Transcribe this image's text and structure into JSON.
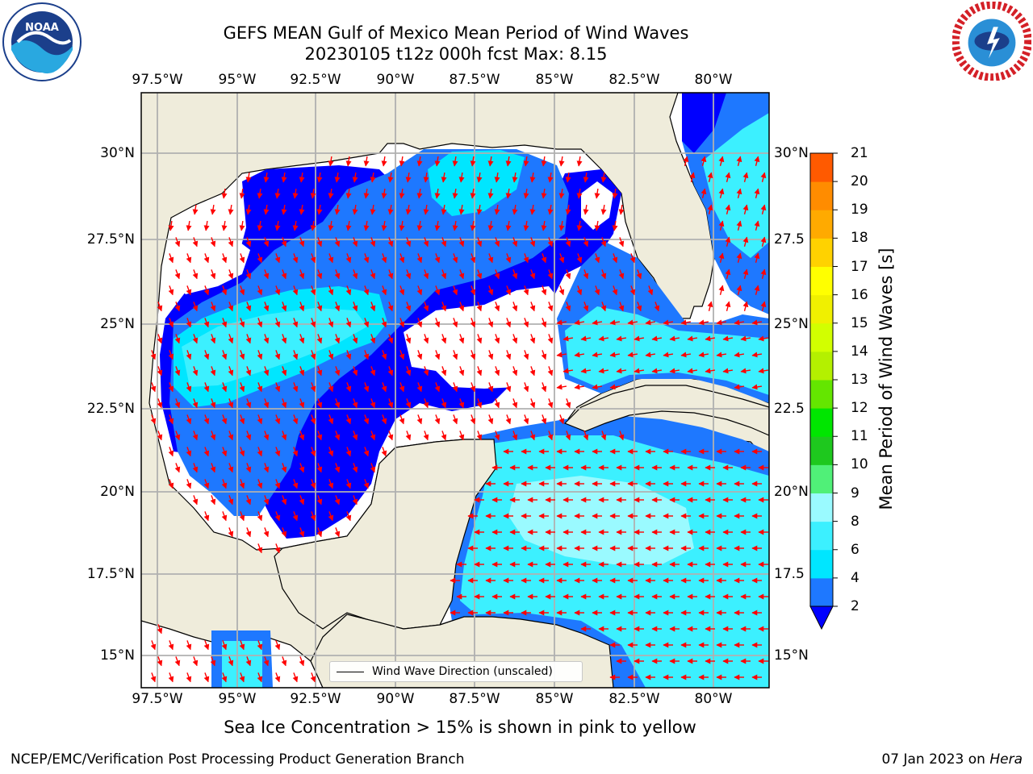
{
  "title": {
    "line1": "GEFS MEAN Gulf of Mexico Mean Period of Wind Waves",
    "line2": "20230105 t12z 000h fcst   Max: 8.15"
  },
  "logos": {
    "left": {
      "name": "NOAA",
      "ring_text": "NATIONAL OCEANIC AND ATMOSPHERIC ADMINISTRATION · U.S. DEPARTMENT OF COMMERCE ·"
    },
    "right": {
      "name": "National Weather Service",
      "ring_text": "NATIONAL WEATHER SERVICE"
    }
  },
  "map": {
    "lon_labels": [
      "97.5°W",
      "95°W",
      "92.5°W",
      "90°W",
      "87.5°W",
      "85°W",
      "82.5°W",
      "80°W"
    ],
    "lat_labels_left": [
      "30°N",
      "27.5°N",
      "25°N",
      "22.5°N",
      "20°N",
      "17.5°N",
      "15°N"
    ],
    "lat_labels_right": [
      "30°N",
      "27.5",
      "25°N",
      "22.5",
      "20°N",
      "17.5",
      "15°N"
    ],
    "land_color": "#efecdb",
    "grid": true,
    "legend_label": "Wind Wave Direction (unscaled)",
    "arrow_color": "#ff0000"
  },
  "colorbar": {
    "label": "Mean Period of Wind Waves [s]",
    "ticks": [
      "2",
      "4",
      "6",
      "8",
      "9",
      "10",
      "11",
      "12",
      "13",
      "14",
      "15",
      "16",
      "17",
      "18",
      "19",
      "20",
      "21"
    ],
    "colors": [
      "#1e78ff",
      "#00e6ff",
      "#3cf0ff",
      "#9afaff",
      "#50f078",
      "#1ec81e",
      "#00e600",
      "#64e600",
      "#b4f000",
      "#d2ff00",
      "#f0f000",
      "#ffff00",
      "#ffd200",
      "#ffaa00",
      "#ff8c00",
      "#ff5a00",
      "#ff2800",
      "#ff0000"
    ],
    "under_color": "#0000ff"
  },
  "caption": "Sea Ice Concentration > 15% is shown in pink to yellow",
  "footer": {
    "left": "NCEP/EMC/Verification Post Processing Product Generation Branch",
    "right_date": "07 Jan 2023 on ",
    "right_host": "Hera"
  }
}
